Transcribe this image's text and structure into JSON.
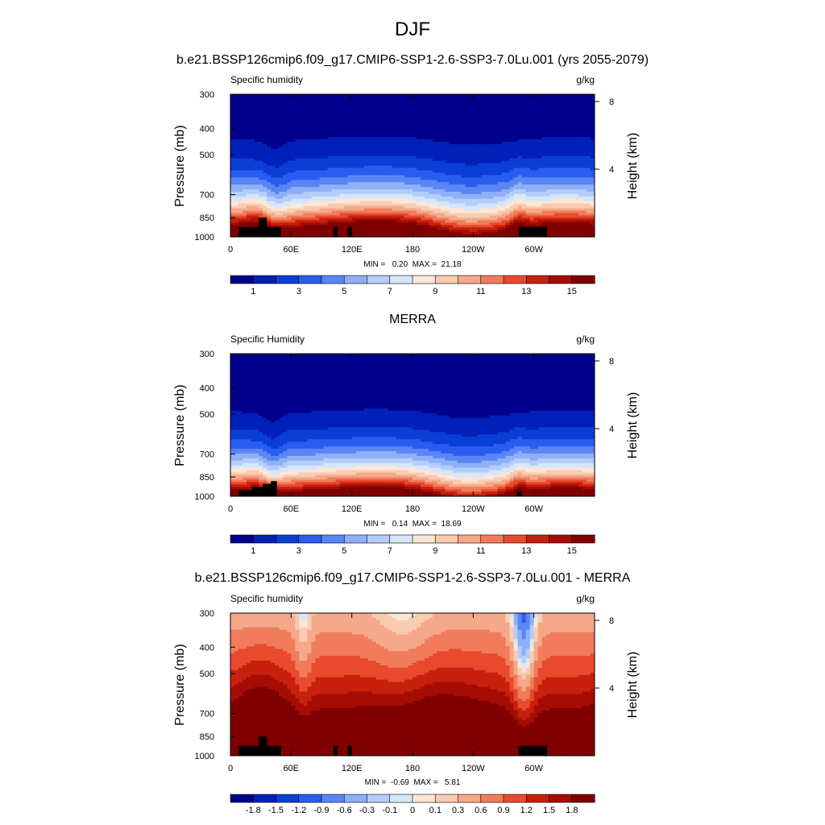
{
  "figure": {
    "title": "DJF",
    "panel_titles": [
      "b.e21.BSSP126cmip6.f09_g17.CMIP6-SSP1-2.6-SSP3-7.0Lu.001 (yrs 2055-2079)",
      "MERRA",
      "b.e21.BSSP126cmip6.f09_g17.CMIP6-SSP1-2.6-SSP3-7.0Lu.001 - MERRA"
    ]
  },
  "chart_data": [
    {
      "type": "heatmap",
      "subtitle_left": "Specific humidity",
      "units": "g/kg",
      "ylabel": "Pressure (mb)",
      "ylabel_right": "Height (km)",
      "xticks": [
        "0",
        "60E",
        "120E",
        "180",
        "120W",
        "60W"
      ],
      "xtick_lon": [
        0,
        60,
        120,
        180,
        240,
        300
      ],
      "xlim": [
        0,
        360
      ],
      "yticks": [
        "300",
        "400",
        "500",
        "700",
        "850",
        "1000"
      ],
      "ytick_values": [
        300,
        400,
        500,
        700,
        850,
        1000
      ],
      "ylim": [
        1000,
        300
      ],
      "log_pressure_axis": true,
      "height_ticks": [
        "8",
        "4"
      ],
      "height_tick_km": [
        8,
        4
      ],
      "stats": "MIN =   0.20  MAX =  21.18",
      "colorbar_labels": [
        "1",
        "3",
        "5",
        "7",
        "9",
        "11",
        "13",
        "15"
      ],
      "colorbar_levels": [
        0,
        1,
        2,
        3,
        4,
        5,
        6,
        7,
        8,
        9,
        10,
        11,
        12,
        13,
        14,
        15,
        16
      ],
      "field": "specific humidity, model"
    },
    {
      "type": "heatmap",
      "subtitle_left": "Specific Humidity",
      "units": "g/kg",
      "ylabel": "Pressure (mb)",
      "ylabel_right": "Height (km)",
      "xticks": [
        "0",
        "60E",
        "120E",
        "180",
        "120W",
        "60W"
      ],
      "xtick_lon": [
        0,
        60,
        120,
        180,
        240,
        300
      ],
      "xlim": [
        0,
        360
      ],
      "yticks": [
        "300",
        "400",
        "500",
        "700",
        "850",
        "1000"
      ],
      "ytick_values": [
        300,
        400,
        500,
        700,
        850,
        1000
      ],
      "ylim": [
        1000,
        300
      ],
      "log_pressure_axis": true,
      "height_ticks": [
        "8",
        "4"
      ],
      "height_tick_km": [
        8,
        4
      ],
      "stats": "MIN =   0.14  MAX =  18.69",
      "colorbar_labels": [
        "1",
        "3",
        "5",
        "7",
        "9",
        "11",
        "13",
        "15"
      ],
      "colorbar_levels": [
        0,
        1,
        2,
        3,
        4,
        5,
        6,
        7,
        8,
        9,
        10,
        11,
        12,
        13,
        14,
        15,
        16
      ],
      "field": "specific humidity, reanalysis"
    },
    {
      "type": "heatmap",
      "subtitle_left": "Specific humidity",
      "units": "g/kg",
      "ylabel": "Pressure (mb)",
      "ylabel_right": "Height (km)",
      "xticks": [
        "0",
        "60E",
        "120E",
        "180",
        "120W",
        "60W"
      ],
      "xtick_lon": [
        0,
        60,
        120,
        180,
        240,
        300
      ],
      "xlim": [
        0,
        360
      ],
      "yticks": [
        "300",
        "400",
        "500",
        "700",
        "850",
        "1000"
      ],
      "ytick_values": [
        300,
        400,
        500,
        700,
        850,
        1000
      ],
      "ylim": [
        1000,
        300
      ],
      "log_pressure_axis": true,
      "height_ticks": [
        "8",
        "4"
      ],
      "height_tick_km": [
        8,
        4
      ],
      "stats": "MIN =  -0.69  MAX =   5.81",
      "colorbar_labels": [
        "-1.8",
        "-1.5",
        "-1.2",
        "-0.9",
        "-0.6",
        "-0.3",
        "-0.1",
        "0",
        "0.1",
        "0.3",
        "0.6",
        "0.9",
        "1.2",
        "1.5",
        "1.8"
      ],
      "colorbar_levels": [
        -2.1,
        -1.8,
        -1.5,
        -1.2,
        -0.9,
        -0.6,
        -0.3,
        -0.1,
        0,
        0.1,
        0.3,
        0.6,
        0.9,
        1.2,
        1.5,
        1.8,
        2.1
      ],
      "field": "difference"
    }
  ],
  "colors": {
    "palette": [
      "#00008b",
      "#0020b8",
      "#0a3fd6",
      "#2a5cf0",
      "#5a86f5",
      "#8fb0f7",
      "#b4cdf9",
      "#d6e6fb",
      "#fce7d6",
      "#f9cbb0",
      "#f5a98a",
      "#f07c5c",
      "#e84a2e",
      "#c8200e",
      "#a50d04",
      "#7f0000"
    ],
    "mask": "#000000"
  }
}
